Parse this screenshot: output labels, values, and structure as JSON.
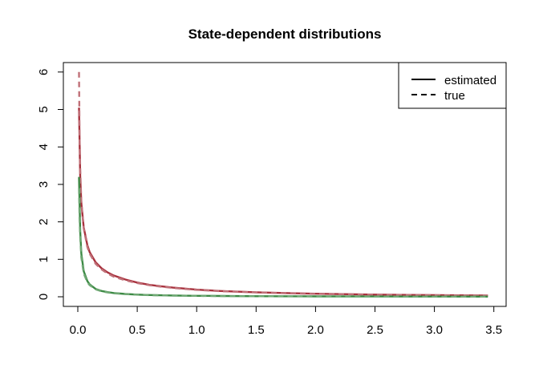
{
  "chart_data": {
    "type": "line",
    "title": "State-dependent distributions",
    "xlabel": "",
    "ylabel": "",
    "xlim": [
      0,
      3.45
    ],
    "ylim": [
      0,
      6
    ],
    "x_ticks": [
      "0.0",
      "0.5",
      "1.0",
      "1.5",
      "2.0",
      "2.5",
      "3.0",
      "3.5"
    ],
    "y_ticks": [
      "0",
      "1",
      "2",
      "3",
      "4",
      "5",
      "6"
    ],
    "grid": false,
    "legend": {
      "placement": "top-right",
      "entries": [
        {
          "label": "estimated",
          "linestyle": "solid"
        },
        {
          "label": "true",
          "linestyle": "dashed"
        }
      ]
    },
    "series": [
      {
        "color": "#a8323e",
        "linestyle": "solid",
        "x": [
          0.01,
          0.02,
          0.03,
          0.05,
          0.08,
          0.1,
          0.15,
          0.2,
          0.25,
          0.3,
          0.4,
          0.5,
          0.6,
          0.7,
          0.8,
          1.0,
          1.2,
          1.5,
          1.8,
          2.0,
          2.5,
          3.0,
          3.45
        ],
        "y": [
          5.05,
          3.2,
          2.5,
          1.85,
          1.38,
          1.19,
          0.92,
          0.76,
          0.65,
          0.57,
          0.46,
          0.38,
          0.32,
          0.28,
          0.245,
          0.19,
          0.155,
          0.12,
          0.095,
          0.082,
          0.058,
          0.042,
          0.032
        ]
      },
      {
        "color": "#c07078",
        "linestyle": "dashed",
        "x": [
          0.01,
          0.015,
          0.02,
          0.03,
          0.05,
          0.08,
          0.1,
          0.15,
          0.2,
          0.25,
          0.3,
          0.4,
          0.5,
          0.6,
          0.7,
          0.8,
          1.0,
          1.2,
          1.5,
          1.8,
          2.0,
          2.5,
          3.0,
          3.45
        ],
        "y": [
          6.0,
          4.3,
          3.4,
          2.55,
          1.82,
          1.33,
          1.15,
          0.88,
          0.73,
          0.62,
          0.54,
          0.44,
          0.365,
          0.31,
          0.27,
          0.235,
          0.185,
          0.15,
          0.115,
          0.09,
          0.078,
          0.055,
          0.04,
          0.03
        ]
      },
      {
        "color": "#3d8a45",
        "linestyle": "solid",
        "x": [
          0.01,
          0.02,
          0.03,
          0.05,
          0.08,
          0.1,
          0.15,
          0.2,
          0.25,
          0.3,
          0.4,
          0.5,
          0.6,
          0.8,
          1.0,
          1.2,
          1.5,
          2.0,
          2.5,
          3.0,
          3.45
        ],
        "y": [
          3.2,
          1.75,
          1.15,
          0.68,
          0.42,
          0.33,
          0.21,
          0.155,
          0.125,
          0.1,
          0.075,
          0.058,
          0.047,
          0.034,
          0.026,
          0.021,
          0.016,
          0.011,
          0.008,
          0.006,
          0.005
        ]
      },
      {
        "color": "#6fa874",
        "linestyle": "dashed",
        "x": [
          0.01,
          0.015,
          0.02,
          0.03,
          0.05,
          0.08,
          0.1,
          0.15,
          0.2,
          0.25,
          0.3,
          0.4,
          0.5,
          0.6,
          0.8,
          1.0,
          1.2,
          1.5,
          2.0,
          2.5,
          3.0,
          3.45
        ],
        "y": [
          2.9,
          2.1,
          1.6,
          1.05,
          0.62,
          0.39,
          0.31,
          0.2,
          0.145,
          0.115,
          0.095,
          0.07,
          0.055,
          0.045,
          0.032,
          0.025,
          0.02,
          0.015,
          0.01,
          0.007,
          0.005,
          0.004
        ]
      }
    ]
  }
}
